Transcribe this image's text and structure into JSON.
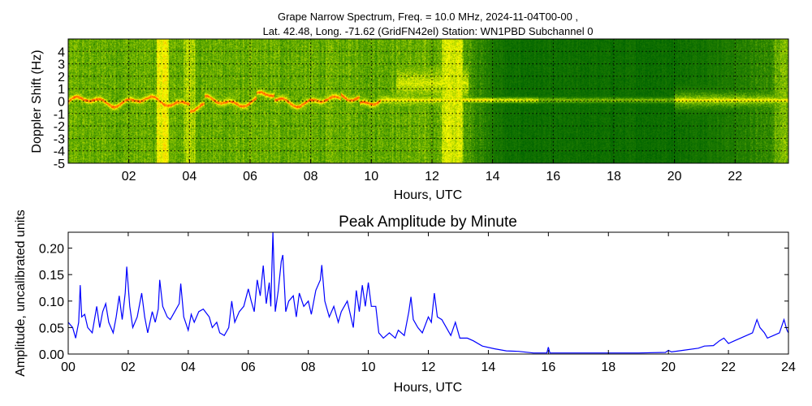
{
  "chart_data": [
    {
      "type": "heatmap",
      "title_line1": "Grape Narrow Spectrum, Freq. = 10.0 MHz, 2024-11-04T00-00 ,",
      "title_line2": "Lat.  42.48, Long. -71.62 (GridFN42el) Station: WN1PBD Subchannel 0",
      "xlabel": "Hours, UTC",
      "ylabel": "Doppler Shift (Hz)",
      "xlim": [
        0,
        23.76
      ],
      "ylim": [
        -5,
        5
      ],
      "x_ticks": [
        "02",
        "04",
        "06",
        "08",
        "10",
        "12",
        "14",
        "16",
        "18",
        "20",
        "22"
      ],
      "x_tick_values": [
        2,
        4,
        6,
        8,
        10,
        12,
        14,
        16,
        18,
        20,
        22
      ],
      "y_ticks": [
        "4",
        "3",
        "2",
        "1",
        "0",
        "-1",
        "-2",
        "-3",
        "-4",
        "-5"
      ],
      "y_tick_values": [
        4,
        3,
        2,
        1,
        0,
        -1,
        -2,
        -3,
        -4,
        -5
      ],
      "grid": true,
      "colors": {
        "low": "#006400",
        "mid": "#5aa000",
        "high": "#ffff00",
        "peak": "#ff5a00"
      }
    },
    {
      "type": "line",
      "title": "Peak Amplitude by Minute",
      "xlabel": "Hours, UTC",
      "ylabel": "Amplitude, uncalibrated units",
      "xlim": [
        0,
        24
      ],
      "ylim": [
        0,
        0.23
      ],
      "x_ticks": [
        "00",
        "02",
        "04",
        "06",
        "08",
        "10",
        "12",
        "14",
        "16",
        "18",
        "20",
        "22",
        "24"
      ],
      "x_tick_values": [
        0,
        2,
        4,
        6,
        8,
        10,
        12,
        14,
        16,
        18,
        20,
        22,
        24
      ],
      "y_ticks": [
        "0.00",
        "0.05",
        "0.10",
        "0.15",
        "0.20"
      ],
      "y_tick_values": [
        0,
        0.05,
        0.1,
        0.15,
        0.2
      ],
      "grid": false,
      "color": "#0000ff",
      "x": [
        0,
        0.15,
        0.25,
        0.35,
        0.4,
        0.45,
        0.55,
        0.65,
        0.8,
        0.95,
        1.05,
        1.15,
        1.25,
        1.35,
        1.5,
        1.6,
        1.7,
        1.8,
        1.9,
        1.95,
        2.05,
        2.15,
        2.3,
        2.45,
        2.55,
        2.65,
        2.8,
        2.9,
        3.0,
        3.05,
        3.15,
        3.3,
        3.4,
        3.55,
        3.7,
        3.75,
        3.85,
        4.0,
        4.1,
        4.2,
        4.35,
        4.5,
        4.7,
        4.8,
        4.95,
        5.05,
        5.2,
        5.35,
        5.45,
        5.55,
        5.7,
        5.85,
        6.0,
        6.1,
        6.2,
        6.3,
        6.4,
        6.5,
        6.6,
        6.7,
        6.75,
        6.82,
        6.9,
        7.0,
        7.1,
        7.15,
        7.25,
        7.35,
        7.5,
        7.6,
        7.7,
        7.85,
        8.0,
        8.1,
        8.25,
        8.4,
        8.45,
        8.55,
        8.7,
        8.85,
        9.0,
        9.1,
        9.3,
        9.5,
        9.6,
        9.7,
        9.8,
        9.9,
        10.0,
        10.1,
        10.25,
        10.35,
        10.5,
        10.7,
        10.9,
        11.0,
        11.2,
        11.35,
        11.42,
        11.5,
        11.65,
        11.8,
        12.0,
        12.1,
        12.2,
        12.3,
        12.45,
        12.6,
        12.75,
        12.9,
        13.05,
        13.3,
        13.5,
        13.8,
        14.2,
        14.6,
        15.0,
        15.5,
        15.95,
        16.0,
        16.05,
        17,
        18,
        19,
        19.9,
        20.0,
        20.1,
        20.5,
        21.0,
        21.2,
        21.5,
        21.7,
        21.85,
        22.0,
        22.2,
        22.4,
        22.6,
        22.8,
        22.95,
        23.05,
        23.2,
        23.3,
        23.5,
        23.7,
        23.85,
        23.95,
        24
      ],
      "y": [
        0.06,
        0.05,
        0.03,
        0.06,
        0.13,
        0.07,
        0.075,
        0.05,
        0.04,
        0.09,
        0.05,
        0.08,
        0.095,
        0.06,
        0.04,
        0.07,
        0.11,
        0.065,
        0.115,
        0.165,
        0.09,
        0.05,
        0.07,
        0.115,
        0.07,
        0.04,
        0.08,
        0.06,
        0.085,
        0.14,
        0.09,
        0.07,
        0.065,
        0.08,
        0.095,
        0.133,
        0.07,
        0.045,
        0.075,
        0.06,
        0.08,
        0.085,
        0.07,
        0.05,
        0.06,
        0.04,
        0.035,
        0.05,
        0.1,
        0.06,
        0.08,
        0.09,
        0.123,
        0.1,
        0.08,
        0.14,
        0.11,
        0.167,
        0.095,
        0.135,
        0.09,
        0.235,
        0.08,
        0.12,
        0.175,
        0.187,
        0.08,
        0.1,
        0.11,
        0.07,
        0.115,
        0.09,
        0.1,
        0.075,
        0.12,
        0.14,
        0.168,
        0.1,
        0.07,
        0.09,
        0.06,
        0.08,
        0.1,
        0.05,
        0.12,
        0.08,
        0.13,
        0.09,
        0.135,
        0.09,
        0.09,
        0.04,
        0.03,
        0.04,
        0.03,
        0.045,
        0.035,
        0.08,
        0.108,
        0.065,
        0.05,
        0.04,
        0.07,
        0.06,
        0.115,
        0.07,
        0.065,
        0.05,
        0.035,
        0.06,
        0.03,
        0.03,
        0.025,
        0.015,
        0.01,
        0.006,
        0.005,
        0.002,
        0.002,
        0.013,
        0.002,
        0.002,
        0.002,
        0.002,
        0.003,
        0.007,
        0.004,
        0.007,
        0.011,
        0.015,
        0.016,
        0.025,
        0.03,
        0.02,
        0.025,
        0.03,
        0.035,
        0.04,
        0.065,
        0.05,
        0.04,
        0.03,
        0.035,
        0.04,
        0.065,
        0.045,
        0.04
      ]
    }
  ]
}
